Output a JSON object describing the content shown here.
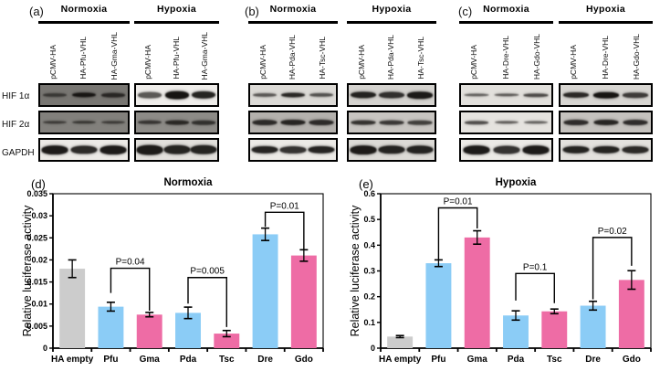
{
  "figure": {
    "background": "#ffffff",
    "blot_panels": [
      {
        "letter": "(a)",
        "row_labels": [
          "HIF 1α",
          "HIF 2α",
          "GAPDH"
        ],
        "conditions": [
          {
            "label": "Normoxia",
            "lanes": [
              "pCMV-HA",
              "HA-Pfu-VHL",
              "HA-Gma-VHL"
            ],
            "blots": [
              {
                "bg": "#787672",
                "bands": [
                  0.45,
                  0.95,
                  0.7
                ],
                "band_h": 5,
                "band_w": 26
              },
              {
                "bg": "#82807c",
                "bands": [
                  0.5,
                  0.55,
                  0.5
                ],
                "band_h": 4,
                "band_w": 26
              },
              {
                "bg": "#eceae6",
                "bands": [
                  0.95,
                  0.85,
                  0.95
                ],
                "band_h": 9,
                "band_w": 29
              }
            ]
          },
          {
            "label": "Hypoxia",
            "lanes": [
              "pCMV-HA",
              "HA-Pfu-VHL",
              "HA-Gma-VHL"
            ],
            "blots": [
              {
                "bg": "#efedea",
                "bands": [
                  0.55,
                  1.0,
                  0.9
                ],
                "band_h": 8,
                "band_w": 26
              },
              {
                "bg": "#8d8b87",
                "bands": [
                  0.6,
                  0.75,
                  0.65
                ],
                "band_h": 5,
                "band_w": 26
              },
              {
                "bg": "#e2e0dc",
                "bands": [
                  0.95,
                  0.9,
                  0.9
                ],
                "band_h": 10,
                "band_w": 29
              }
            ]
          }
        ]
      },
      {
        "letter": "(b)",
        "row_labels": [],
        "conditions": [
          {
            "label": "Normoxia",
            "lanes": [
              "pCMV-HA",
              "HA-Pda-VHL",
              "HA-Tsc-VHL"
            ],
            "blots": [
              {
                "bg": "#dcdad6",
                "bands": [
                  0.5,
                  0.85,
                  0.55
                ],
                "band_h": 5,
                "band_w": 26
              },
              {
                "bg": "#b4b1ad",
                "bands": [
                  0.8,
                  0.85,
                  0.8
                ],
                "band_h": 6,
                "band_w": 27
              },
              {
                "bg": "#eceae6",
                "bands": [
                  0.9,
                  0.8,
                  0.9
                ],
                "band_h": 8,
                "band_w": 29
              }
            ]
          },
          {
            "label": "Hypoxia",
            "lanes": [
              "pCMV-HA",
              "HA-Pda-VHL",
              "HA-Tsc-VHL"
            ],
            "blots": [
              {
                "bg": "#d5d3cf",
                "bands": [
                  0.9,
                  0.8,
                  0.95
                ],
                "band_h": 7,
                "band_w": 28
              },
              {
                "bg": "#c8c5c1",
                "bands": [
                  0.75,
                  0.7,
                  0.65
                ],
                "band_h": 5,
                "band_w": 27
              },
              {
                "bg": "#dcdad6",
                "bands": [
                  0.95,
                  0.9,
                  0.9
                ],
                "band_h": 9,
                "band_w": 29
              }
            ]
          }
        ]
      },
      {
        "letter": "(c)",
        "row_labels": [],
        "conditions": [
          {
            "label": "Normoxia",
            "lanes": [
              "pCMV-HA",
              "HA-Dre-VHL",
              "HA-Gdo-VHL"
            ],
            "blots": [
              {
                "bg": "#e2e0dc",
                "bands": [
                  0.45,
                  0.5,
                  0.6
                ],
                "band_h": 4,
                "band_w": 27
              },
              {
                "bg": "#e5e3df",
                "bands": [
                  0.6,
                  0.5,
                  0.45
                ],
                "band_h": 4,
                "band_w": 26
              },
              {
                "bg": "#eceae6",
                "bands": [
                  0.95,
                  0.8,
                  0.95
                ],
                "band_h": 9,
                "band_w": 29
              }
            ]
          },
          {
            "label": "Hypoxia",
            "lanes": [
              "pCMV-HA",
              "HA-Dre-VHL",
              "HA-Gdo-VHL"
            ],
            "blots": [
              {
                "bg": "#d8d6d2",
                "bands": [
                  0.85,
                  1.0,
                  0.7
                ],
                "band_h": 6,
                "band_w": 28
              },
              {
                "bg": "#c5c2be",
                "bands": [
                  0.8,
                  0.85,
                  0.8
                ],
                "band_h": 6,
                "band_w": 27
              },
              {
                "bg": "#e3e1dd",
                "bands": [
                  0.9,
                  0.9,
                  0.85
                ],
                "band_h": 8,
                "band_w": 29
              }
            ]
          }
        ]
      }
    ]
  },
  "chart_data": [
    {
      "id": "d",
      "type": "bar",
      "panel_letter": "(d)",
      "title": "Normoxia",
      "xlabel": "",
      "ylabel": "Relative luciferase activity",
      "categories": [
        "HA empty",
        "Pfu",
        "Gma",
        "Pda",
        "Tsc",
        "Dre",
        "Gdo"
      ],
      "values": [
        0.018,
        0.0094,
        0.0076,
        0.008,
        0.0033,
        0.0258,
        0.021
      ],
      "errors": [
        0.002,
        0.001,
        0.0005,
        0.0013,
        0.0007,
        0.0014,
        0.0013
      ],
      "bar_colors": [
        "#cccccc",
        "#8bccf6",
        "#ee6ca5",
        "#8bccf6",
        "#ee6ca5",
        "#8bccf6",
        "#ee6ca5"
      ],
      "error_color": "#000000",
      "ylim": [
        0,
        0.035
      ],
      "ytick_labels": [
        "0",
        "0.005",
        "0.01",
        "0.015",
        "0.02",
        "0.025",
        "0.03",
        "0.035"
      ],
      "grid": false,
      "plot_border": true,
      "legend": null,
      "significance_brackets": [
        {
          "from": "Pfu",
          "to": "Gma",
          "label": "P=0.04",
          "top": 0.0181,
          "left_end": 0.0125,
          "right_end": 0.0085
        },
        {
          "from": "Pda",
          "to": "Tsc",
          "label": "P=0.005",
          "top": 0.016,
          "left_end": 0.0101,
          "right_end": 0.0048
        },
        {
          "from": "Dre",
          "to": "Gdo",
          "label": "P=0.01",
          "top": 0.0308,
          "left_end": 0.0275,
          "right_end": 0.0222
        }
      ]
    },
    {
      "id": "e",
      "type": "bar",
      "panel_letter": "(e)",
      "title": "Hypoxia",
      "xlabel": "",
      "ylabel": "Relative luciferase activity",
      "categories": [
        "HA empty",
        "Pfu",
        "Gma",
        "Pda",
        "Tsc",
        "Dre",
        "Gdo"
      ],
      "values": [
        0.045,
        0.33,
        0.43,
        0.127,
        0.143,
        0.165,
        0.265
      ],
      "errors": [
        0.004,
        0.013,
        0.026,
        0.018,
        0.009,
        0.017,
        0.036
      ],
      "bar_colors": [
        "#cccccc",
        "#8bccf6",
        "#ee6ca5",
        "#8bccf6",
        "#ee6ca5",
        "#8bccf6",
        "#ee6ca5"
      ],
      "error_color": "#000000",
      "ylim": [
        0,
        0.6
      ],
      "ytick_labels": [
        "0",
        "0.1",
        "0.2",
        "0.3",
        "0.4",
        "0.5",
        "0.6"
      ],
      "grid": false,
      "plot_border": true,
      "legend": null,
      "significance_brackets": [
        {
          "from": "Pfu",
          "to": "Gma",
          "label": "P=0.01",
          "top": 0.545,
          "left_end": 0.345,
          "right_end": 0.465
        },
        {
          "from": "Pda",
          "to": "Tsc",
          "label": "P=0.1",
          "top": 0.29,
          "left_end": 0.185,
          "right_end": 0.175
        },
        {
          "from": "Dre",
          "to": "Gdo",
          "label": "P=0.02",
          "top": 0.43,
          "left_end": 0.19,
          "right_end": 0.32
        }
      ]
    }
  ]
}
